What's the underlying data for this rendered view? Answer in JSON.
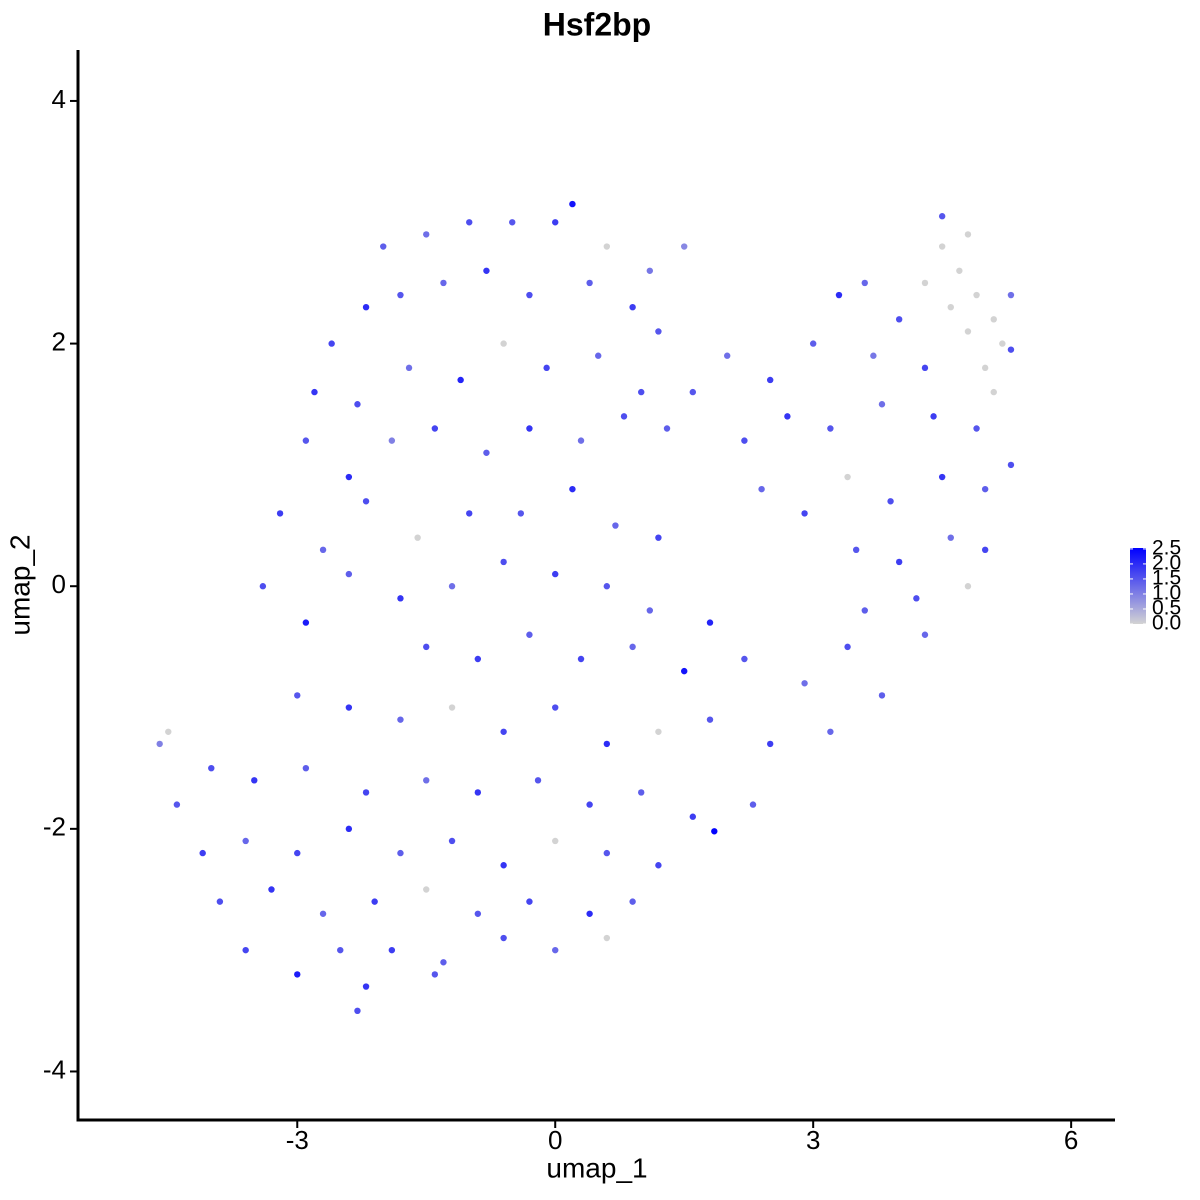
{
  "chart_data": {
    "type": "scatter",
    "title": "Hsf2bp",
    "xlabel": "umap_1",
    "ylabel": "umap_2",
    "xlim": [
      -5.55,
      6.51
    ],
    "ylim": [
      -4.4,
      4.42
    ],
    "xticks": [
      -3,
      0,
      3,
      6
    ],
    "yticks": [
      -4,
      -2,
      0,
      2,
      4
    ],
    "colorbar": {
      "low_color": "#d3d3d3",
      "high_color": "#0000ff",
      "lim": [
        0,
        2.53
      ],
      "ticks": [
        {
          "value": 0,
          "label": "0.0"
        },
        0.5,
        {
          "value": 1,
          "label": "1.0"
        },
        1.5,
        {
          "value": 2,
          "label": "2.0"
        },
        2.5
      ]
    },
    "x": [
      -2.0,
      -1.5,
      -1.0,
      -0.5,
      0.0,
      0.2,
      0.6,
      1.1,
      1.5,
      -2.6,
      -2.2,
      -1.8,
      -1.3,
      -0.8,
      -0.3,
      0.4,
      0.9,
      1.2,
      -2.8,
      -2.3,
      -1.7,
      -1.1,
      -0.6,
      -0.1,
      0.5,
      1.0,
      -2.9,
      -2.4,
      -1.9,
      -1.4,
      -0.8,
      -0.3,
      0.3,
      0.8,
      1.3,
      -3.2,
      -2.7,
      -2.2,
      -1.6,
      -1.0,
      -0.4,
      0.2,
      0.7,
      1.2,
      -3.4,
      -2.9,
      -2.4,
      -1.8,
      -1.2,
      -0.6,
      0.0,
      0.6,
      1.1,
      1.8,
      1.6,
      2.0,
      2.5,
      3.0,
      3.3,
      3.6,
      4.0,
      3.7,
      4.3,
      2.2,
      2.7,
      3.2,
      3.8,
      4.4,
      4.9,
      2.4,
      2.9,
      3.4,
      3.9,
      4.5,
      5.0,
      5.3,
      3.5,
      4.0,
      4.6,
      5.0,
      3.6,
      4.2,
      4.8,
      4.3,
      4.5,
      4.5,
      4.7,
      4.9,
      5.1,
      5.2,
      4.8,
      5.0,
      4.6,
      4.3,
      5.3,
      5.3,
      4.8,
      5.1,
      -1.5,
      -0.9,
      -0.3,
      0.3,
      0.9,
      1.5,
      2.2,
      2.9,
      3.4,
      3.8,
      -3.0,
      -2.4,
      -1.8,
      -1.2,
      -0.6,
      0.0,
      0.6,
      1.2,
      1.8,
      2.5,
      3.2,
      -4.5,
      -4.6,
      -4.0,
      -3.5,
      -2.9,
      -2.2,
      -1.5,
      -0.9,
      -0.2,
      0.4,
      1.0,
      1.6,
      2.3,
      1.85,
      -4.4,
      -4.1,
      -3.6,
      -3.0,
      -2.4,
      -1.8,
      -1.2,
      -0.6,
      0.0,
      0.6,
      1.2,
      -3.9,
      -3.3,
      -2.7,
      -2.1,
      -1.5,
      -0.9,
      -0.3,
      0.4,
      0.9,
      -3.6,
      -3.0,
      -2.5,
      -1.9,
      -1.3,
      -0.6,
      0.0,
      0.6,
      -2.3,
      -2.2,
      -1.4
    ],
    "values": [
      2.8,
      2.9,
      3.0,
      3.0,
      3.0,
      3.15,
      2.8,
      2.6,
      2.8,
      2.0,
      2.3,
      2.4,
      2.5,
      2.6,
      2.4,
      2.5,
      2.3,
      2.1,
      1.6,
      1.5,
      1.8,
      1.7,
      2.0,
      1.8,
      1.9,
      1.6,
      1.2,
      0.9,
      1.2,
      1.3,
      1.1,
      1.3,
      1.2,
      1.4,
      1.3,
      0.6,
      0.3,
      0.7,
      0.4,
      0.6,
      0.6,
      0.8,
      0.5,
      0.4,
      0.0,
      -0.3,
      0.1,
      -0.1,
      0.0,
      0.2,
      0.1,
      0.0,
      -0.2,
      -0.3,
      1.6,
      1.9,
      1.7,
      2.0,
      2.4,
      2.5,
      2.2,
      1.9,
      1.8,
      1.2,
      1.4,
      1.3,
      1.5,
      1.4,
      1.3,
      0.8,
      0.6,
      0.9,
      0.7,
      0.9,
      0.8,
      1.0,
      0.3,
      0.2,
      0.4,
      0.3,
      -0.2,
      -0.1,
      0.0,
      -0.4,
      3.05,
      2.8,
      2.6,
      2.4,
      2.2,
      2.0,
      2.1,
      1.8,
      2.3,
      2.5,
      2.4,
      1.95,
      2.9,
      1.6,
      -0.5,
      -0.6,
      -0.4,
      -0.6,
      -0.5,
      -0.7,
      -0.6,
      -0.8,
      -0.5,
      -0.9,
      -0.9,
      -1.0,
      -1.1,
      -1.0,
      -1.2,
      -1.0,
      -1.3,
      -1.2,
      -1.1,
      -1.3,
      -1.2,
      -1.2,
      -1.3,
      -1.5,
      -1.6,
      -1.5,
      -1.7,
      -1.6,
      -1.7,
      -1.6,
      -1.8,
      -1.7,
      -1.9,
      -1.8,
      -2.02,
      -1.8,
      -2.2,
      -2.1,
      -2.2,
      -2.0,
      -2.2,
      -2.1,
      -2.3,
      -2.1,
      -2.2,
      -2.3,
      -2.6,
      -2.5,
      -2.7,
      -2.6,
      -2.5,
      -2.7,
      -2.6,
      -2.7,
      -2.6,
      -3.0,
      -3.2,
      -3.0,
      -3.0,
      -3.1,
      -2.9,
      -3.0,
      -2.9,
      -3.5,
      -3.3,
      -3.2
    ],
    "expression": [
      1.4,
      1.2,
      1.6,
      1.5,
      1.8,
      2.3,
      0,
      1.1,
      0.9,
      1.7,
      2.0,
      1.5,
      1.3,
      1.9,
      1.6,
      1.4,
      1.8,
      1.5,
      1.9,
      1.6,
      1.2,
      2.1,
      0,
      1.7,
      1.3,
      1.6,
      1.5,
      2.0,
      1.0,
      1.7,
      1.4,
      1.9,
      1.2,
      1.6,
      1.4,
      1.8,
      1.3,
      1.6,
      0,
      1.7,
      1.5,
      2.0,
      1.3,
      1.7,
      1.6,
      2.2,
      1.4,
      1.9,
      1.2,
      1.6,
      1.8,
      1.5,
      1.3,
      2.1,
      1.5,
      1.2,
      1.8,
      1.4,
      2.0,
      1.3,
      1.6,
      1.1,
      1.7,
      1.6,
      1.9,
      1.5,
      1.2,
      1.8,
      1.5,
      1.3,
      1.7,
      0,
      1.6,
      1.9,
      1.4,
      1.6,
      1.5,
      1.8,
      1.2,
      1.7,
      1.4,
      1.6,
      0,
      1.3,
      1.5,
      0,
      0,
      0,
      0,
      0,
      0,
      0,
      0,
      0,
      1.2,
      1.6,
      0,
      0,
      1.6,
      1.8,
      1.4,
      1.7,
      1.3,
      2.3,
      1.5,
      1.2,
      1.6,
      1.4,
      1.5,
      1.9,
      1.3,
      0,
      1.7,
      1.6,
      2.0,
      0,
      1.5,
      1.8,
      1.3,
      0,
      1.0,
      1.6,
      1.9,
      1.4,
      1.7,
      1.2,
      1.9,
      1.5,
      1.7,
      1.4,
      1.8,
      1.4,
      2.5,
      1.5,
      1.8,
      1.3,
      1.7,
      2.0,
      1.4,
      1.6,
      1.9,
      0,
      1.5,
      1.7,
      1.6,
      1.9,
      1.3,
      1.8,
      0,
      1.5,
      1.7,
      2.0,
      1.4,
      1.7,
      2.2,
      1.5,
      1.8,
      1.4,
      1.6,
      1.3,
      0,
      1.6,
      1.9,
      1.5
    ]
  }
}
